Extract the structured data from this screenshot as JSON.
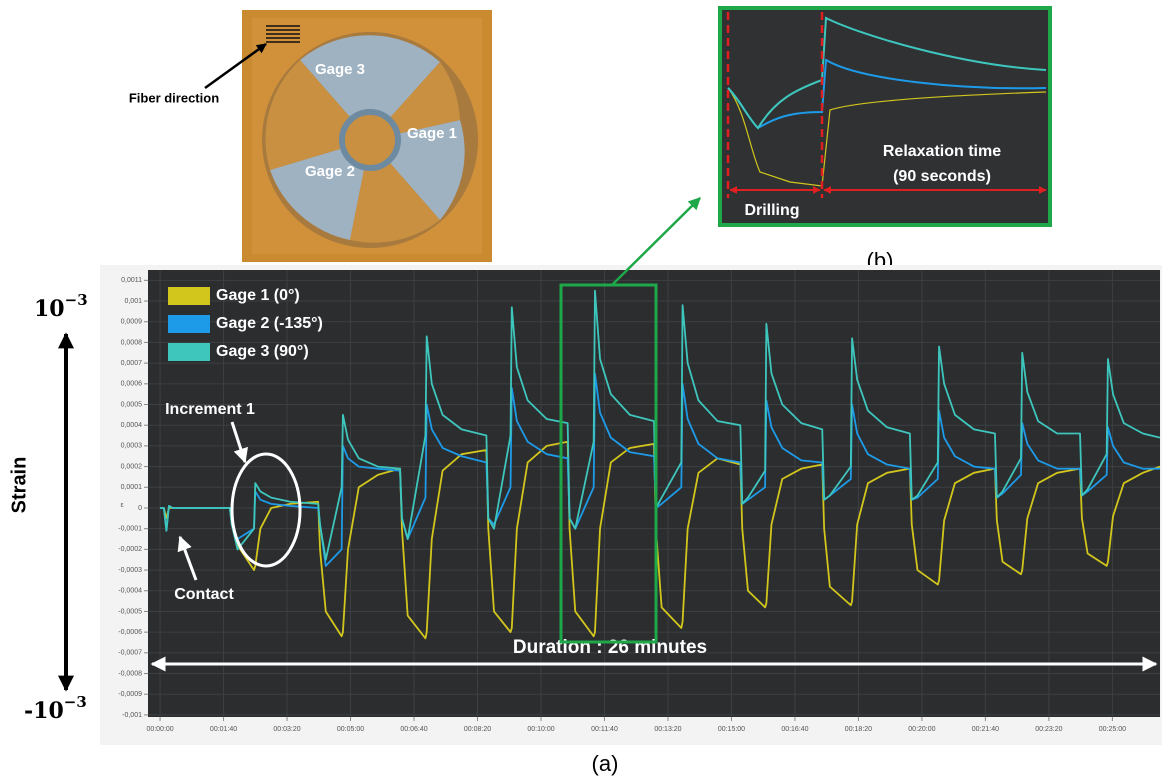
{
  "chart_data": {
    "type": "line",
    "y_axis_label": "Strain",
    "y_unit_label": "ε",
    "y_max_label": {
      "base": "10",
      "exponent": "−3"
    },
    "y_min_label": {
      "base": "-10",
      "exponent": "−3"
    },
    "annotations": {
      "increment": "Increment 1",
      "contact": "Contact",
      "duration": "Duration : 26 minutes",
      "panel": "(a)"
    },
    "legend_position": "upper left",
    "grid": true,
    "xlim": [
      -19,
      1575
    ],
    "ylim": [
      -0.00101,
      0.00115
    ],
    "xticks": [
      {
        "value": 0,
        "label": "00:00:00"
      },
      {
        "value": 100,
        "label": "00:01:40"
      },
      {
        "value": 200,
        "label": "00:03:20"
      },
      {
        "value": 300,
        "label": "00:05:00"
      },
      {
        "value": 400,
        "label": "00:06:40"
      },
      {
        "value": 500,
        "label": "00:08:20"
      },
      {
        "value": 600,
        "label": "00:10:00"
      },
      {
        "value": 700,
        "label": "00:11:40"
      },
      {
        "value": 800,
        "label": "00:13:20"
      },
      {
        "value": 900,
        "label": "00:15:00"
      },
      {
        "value": 1000,
        "label": "00:16:40"
      },
      {
        "value": 1100,
        "label": "00:18:20"
      },
      {
        "value": 1200,
        "label": "00:20:00"
      },
      {
        "value": 1300,
        "label": "00:21:40"
      },
      {
        "value": 1400,
        "label": "00:23:20"
      },
      {
        "value": 1500,
        "label": "00:25:00"
      }
    ],
    "yticks": [
      {
        "value": 0.0011,
        "label": "0,0011"
      },
      {
        "value": 0.001,
        "label": "0,001"
      },
      {
        "value": 0.0009,
        "label": "0,0009"
      },
      {
        "value": 0.0008,
        "label": "0,0008"
      },
      {
        "value": 0.0007,
        "label": "0,0007"
      },
      {
        "value": 0.0006,
        "label": "0,0006"
      },
      {
        "value": 0.0005,
        "label": "0,0005"
      },
      {
        "value": 0.0004,
        "label": "0,0004"
      },
      {
        "value": 0.0003,
        "label": "0,0003"
      },
      {
        "value": 0.0002,
        "label": "0,0002"
      },
      {
        "value": 0.0001,
        "label": "0,0001"
      },
      0,
      {
        "value": -0.0001,
        "label": "-0,0001"
      },
      {
        "value": -0.0002,
        "label": "-0,0002"
      },
      {
        "value": -0.0003,
        "label": "-0,0003"
      },
      {
        "value": -0.0004,
        "label": "-0,0004"
      },
      {
        "value": -0.0005,
        "label": "-0,0005"
      },
      {
        "value": -0.0006,
        "label": "-0,0006"
      },
      {
        "value": -0.0007,
        "label": "-0,0007"
      },
      {
        "value": -0.0008,
        "label": "-0,0008"
      },
      {
        "value": -0.0009,
        "label": "-0,0009"
      },
      {
        "value": -0.001,
        "label": "-0,001"
      }
    ],
    "x": [
      0,
      6,
      10,
      14,
      20,
      60,
      110,
      113,
      122,
      148,
      150,
      158,
      175,
      205,
      249,
      252,
      261,
      286,
      288,
      296,
      313,
      343,
      378,
      381,
      390,
      418,
      420,
      428,
      445,
      475,
      514,
      517,
      526,
      552,
      554,
      562,
      579,
      609,
      642,
      645,
      654,
      683,
      685,
      693,
      710,
      740,
      778,
      781,
      790,
      821,
      823,
      831,
      848,
      878,
      914,
      917,
      926,
      953,
      955,
      963,
      980,
      1010,
      1043,
      1046,
      1055,
      1088,
      1090,
      1098,
      1115,
      1145,
      1181,
      1184,
      1193,
      1225,
      1227,
      1235,
      1252,
      1282,
      1315,
      1318,
      1327,
      1356,
      1358,
      1366,
      1383,
      1413,
      1449,
      1452,
      1461,
      1491,
      1493,
      1501,
      1518,
      1548,
      1575
    ],
    "series": [
      {
        "name": "Gage 1 (0°)",
        "color": "#d2c61c",
        "values": [
          0,
          0,
          -5e-05,
          0,
          0,
          0,
          0,
          -8e-05,
          -0.00018,
          -0.0003,
          -0.00028,
          -0.0001,
          0,
          2e-05,
          3e-05,
          -0.0002,
          -0.0005,
          -0.00062,
          -0.0006,
          -0.0002,
          0.0001,
          0.00016,
          0.00019,
          -0.0001,
          -0.00052,
          -0.00063,
          -0.0006,
          -0.00015,
          0.00018,
          0.00026,
          0.00028,
          -0.0001,
          -0.0005,
          -0.0006,
          -0.00058,
          -0.0001,
          0.00022,
          0.0003,
          0.00032,
          -0.0001,
          -0.0005,
          -0.00062,
          -0.0006,
          -0.0001,
          0.00022,
          0.00029,
          0.00031,
          -0.0001,
          -0.00048,
          -0.00058,
          -0.00055,
          -0.0001,
          0.00017,
          0.00024,
          0.00021,
          -0.0001,
          -0.0004,
          -0.00048,
          -0.00046,
          -8e-05,
          0.00014,
          0.00019,
          0.00021,
          -0.0001,
          -0.00038,
          -0.00047,
          -0.00045,
          -8e-05,
          0.00012,
          0.00017,
          0.00019,
          -8e-05,
          -0.0003,
          -0.00037,
          -0.00035,
          -6e-05,
          0.00012,
          0.00017,
          0.00019,
          -6e-05,
          -0.00026,
          -0.00032,
          -0.0003,
          -5e-05,
          0.00012,
          0.00017,
          0.00019,
          -5e-05,
          -0.00022,
          -0.00028,
          -0.00026,
          -4e-05,
          0.00012,
          0.00017,
          0.0002
        ]
      },
      {
        "name": "Gage 2 (-135°)",
        "color": "#1e9be8",
        "values": [
          0,
          0,
          -0.00011,
          1e-05,
          0,
          0,
          0,
          -8e-05,
          -0.00015,
          -0.0001,
          8e-05,
          4e-05,
          2e-05,
          1e-05,
          0,
          -8e-05,
          -0.00028,
          -0.0002,
          0.0003,
          0.00024,
          0.0002,
          0.00019,
          0.00018,
          -5e-05,
          -0.00015,
          5e-05,
          0.0005,
          0.00038,
          0.00029,
          0.00025,
          0.00022,
          -5e-05,
          -8e-05,
          0.0001,
          0.00058,
          0.00042,
          0.00032,
          0.00026,
          0.00024,
          -5e-05,
          -0.0001,
          0.0001,
          0.00065,
          0.00046,
          0.00034,
          0.00027,
          0.00025,
          0,
          2e-05,
          0.0001,
          0.0006,
          0.00043,
          0.00031,
          0.00024,
          0.00022,
          2e-05,
          4e-05,
          0.0001,
          0.00052,
          0.00039,
          0.00029,
          0.00023,
          0.00022,
          4e-05,
          6e-05,
          0.00014,
          0.0005,
          0.00036,
          0.00026,
          0.00021,
          0.00019,
          4e-05,
          5e-05,
          0.00014,
          0.00047,
          0.00034,
          0.00025,
          0.0002,
          0.00019,
          5e-05,
          7e-05,
          0.00016,
          0.00041,
          0.00031,
          0.00023,
          0.00019,
          0.00019,
          6e-05,
          8e-05,
          0.00016,
          0.00039,
          0.0003,
          0.00022,
          0.00019,
          0.00019
        ]
      },
      {
        "name": "Gage 3 (90°)",
        "color": "#3ec6bd",
        "values": [
          0,
          0,
          -0.00011,
          1e-05,
          0,
          0,
          0,
          -8e-05,
          -0.0002,
          -0.0001,
          0.00012,
          8e-05,
          5e-05,
          3e-05,
          2e-05,
          -8e-05,
          -0.00025,
          0.0001,
          0.00045,
          0.00033,
          0.00024,
          0.0002,
          0.00019,
          -5e-05,
          -0.00015,
          0.00035,
          0.00083,
          0.0006,
          0.00045,
          0.00038,
          0.00035,
          -5e-05,
          -0.0001,
          0.00035,
          0.00097,
          0.00068,
          0.00052,
          0.00043,
          0.00041,
          -5e-05,
          -0.0001,
          0.00032,
          0.00105,
          0.00072,
          0.00055,
          0.00045,
          0.00042,
          0,
          5e-05,
          0.00022,
          0.00098,
          0.0007,
          0.00052,
          0.00042,
          0.0004,
          2e-05,
          5e-05,
          0.00018,
          0.00089,
          0.00065,
          0.0005,
          0.00041,
          0.00038,
          4e-05,
          6e-05,
          0.0002,
          0.00082,
          0.00062,
          0.00047,
          0.00039,
          0.00036,
          4e-05,
          6e-05,
          0.00022,
          0.00078,
          0.0006,
          0.00045,
          0.00038,
          0.00036,
          5e-05,
          8e-05,
          0.00024,
          0.00075,
          0.00056,
          0.00042,
          0.00036,
          0.00036,
          6e-05,
          9e-05,
          0.00026,
          0.00072,
          0.00055,
          0.00041,
          0.00036,
          0.00034
        ]
      }
    ]
  },
  "photo": {
    "fiber_label": "Fiber direction",
    "gage_labels": [
      "Gage 3",
      "Gage 1",
      "Gage 2"
    ]
  },
  "inset": {
    "relaxation": "Relaxation time",
    "relaxation_duration": "(90 seconds)",
    "drilling": "Drilling",
    "panel": "(b)"
  }
}
